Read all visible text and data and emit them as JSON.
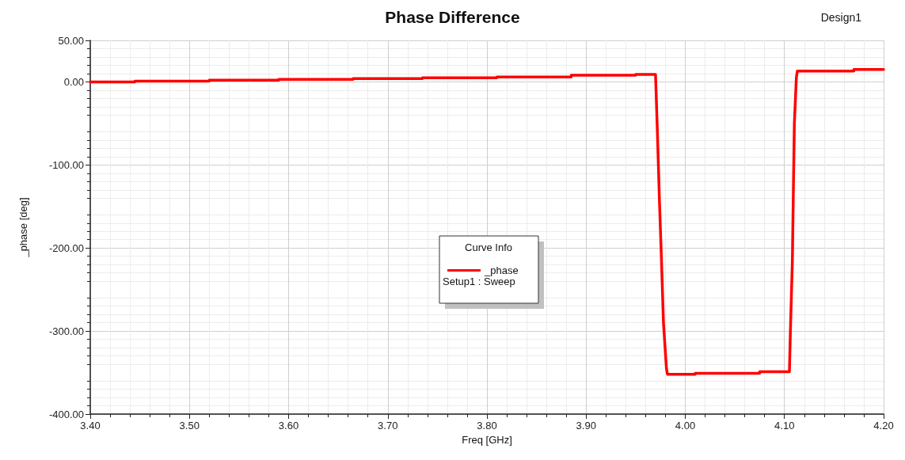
{
  "chart_data": {
    "type": "line",
    "title": "Phase Difference",
    "xlabel": "Freq [GHz]",
    "ylabel": "_phase [deg]",
    "legend_title": "Curve Info",
    "legend": "center",
    "annotations": [
      "Design1",
      "Setup1 : Sweep"
    ],
    "x": [
      3.4,
      3.445,
      3.445,
      3.52,
      3.52,
      3.59,
      3.59,
      3.665,
      3.665,
      3.735,
      3.735,
      3.81,
      3.81,
      3.885,
      3.885,
      3.95,
      3.95,
      3.97,
      3.972,
      3.974,
      3.976,
      3.978,
      3.981,
      3.982,
      4.01,
      4.01,
      4.075,
      4.075,
      4.105,
      4.106,
      4.108,
      4.109,
      4.11,
      4.112,
      4.113,
      4.17,
      4.17,
      4.2
    ],
    "series": [
      {
        "name": "_phase",
        "color": "#ff0000",
        "values": [
          0,
          0,
          1,
          1,
          2,
          2,
          3,
          3,
          4,
          4,
          5,
          5,
          6,
          6,
          8,
          8,
          9,
          9,
          -65,
          -145,
          -215,
          -290,
          -345,
          -352,
          -352,
          -351,
          -351,
          -349,
          -349,
          -300,
          -215,
          -130,
          -50,
          5,
          13,
          13,
          15,
          15
        ]
      }
    ],
    "xlim": [
      3.4,
      4.2
    ],
    "xticks": [
      {
        "value": 3.4,
        "label": "3.40"
      },
      {
        "value": 3.5,
        "label": "3.50"
      },
      {
        "value": 3.6,
        "label": "3.60"
      },
      {
        "value": 3.7,
        "label": "3.70"
      },
      {
        "value": 3.8,
        "label": "3.80"
      },
      {
        "value": 3.9,
        "label": "3.90"
      },
      {
        "value": 4.0,
        "label": "4.00"
      },
      {
        "value": 4.1,
        "label": "4.10"
      },
      {
        "value": 4.2,
        "label": "4.20"
      }
    ],
    "ylim": [
      -400,
      50
    ],
    "yticks": [
      {
        "value": -400,
        "label": "-400.00"
      },
      {
        "value": -300,
        "label": "-300.00"
      },
      {
        "value": -200,
        "label": "-200.00"
      },
      {
        "value": -100,
        "label": "-100.00"
      },
      {
        "value": 0,
        "label": "0.00"
      },
      {
        "value": 50,
        "label": "50.00"
      }
    ],
    "grid": true,
    "marker": "none",
    "line_style": "solid"
  }
}
